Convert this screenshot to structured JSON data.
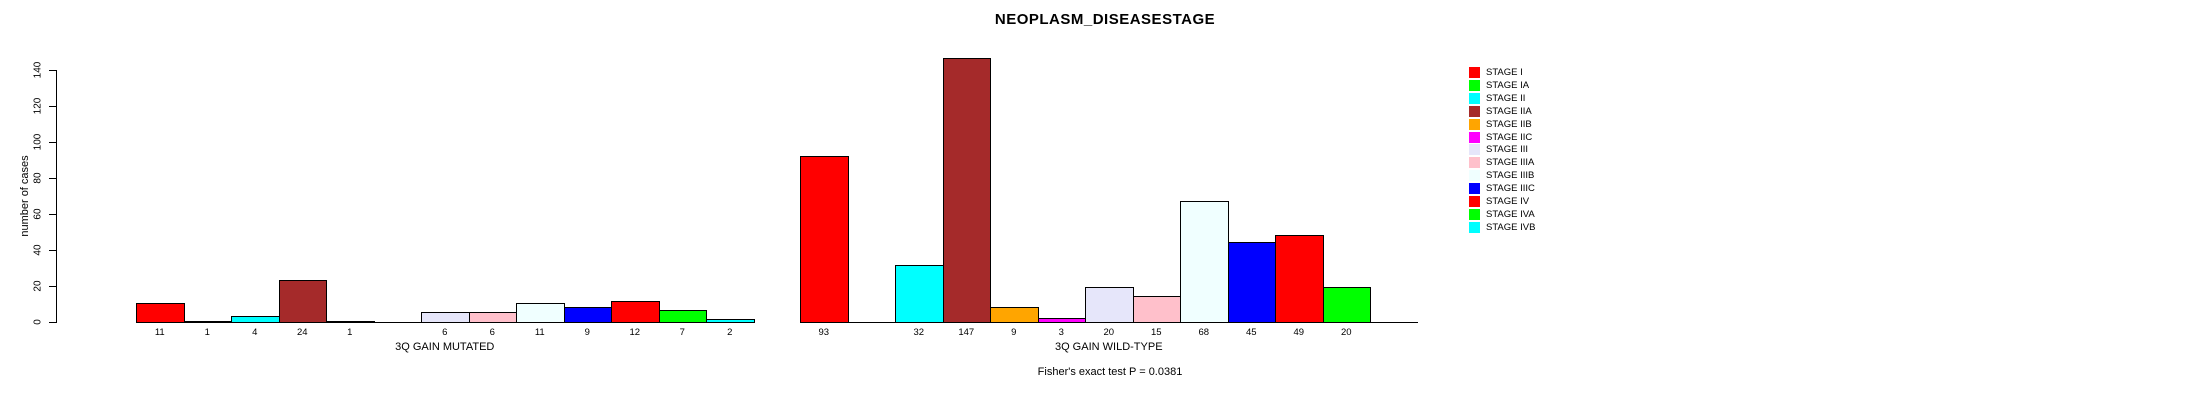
{
  "title": "NEOPLASM_DISEASESTAGE",
  "chart_data": {
    "type": "bar",
    "title": "NEOPLASM_DISEASESTAGE",
    "ylabel": "number of cases",
    "yticks": [
      0,
      20,
      40,
      60,
      80,
      100,
      120,
      140
    ],
    "ylim": [
      0,
      150
    ],
    "grid": false,
    "legend_position": "right",
    "categories": [
      "STAGE I",
      "STAGE IA",
      "STAGE II",
      "STAGE IIA",
      "STAGE IIB",
      "STAGE IIC",
      "STAGE III",
      "STAGE IIIA",
      "STAGE IIIB",
      "STAGE IIIC",
      "STAGE IV",
      "STAGE IVA",
      "STAGE IVB"
    ],
    "colors": [
      "#FF0000",
      "#00FF00",
      "#00FFFF",
      "#A52A2A",
      "#FFA500",
      "#FF00FF",
      "#E6E6FA",
      "#FFC0CB",
      "#F0FFFF",
      "#0000FF",
      "#FF0000",
      "#00FF00",
      "#00FFFF"
    ],
    "groups": [
      {
        "label": "3Q GAIN MUTATED",
        "values": [
          11,
          1,
          4,
          24,
          1,
          0,
          6,
          6,
          11,
          9,
          12,
          7,
          2
        ]
      },
      {
        "label": "3Q GAIN WILD-TYPE",
        "values": [
          93,
          0,
          32,
          147,
          9,
          3,
          20,
          15,
          68,
          45,
          49,
          20,
          0
        ]
      }
    ],
    "bar_value_labels_shown": true,
    "zero_value_labels_hidden": true,
    "annotation": "Fisher's exact test P = 0.0381"
  }
}
